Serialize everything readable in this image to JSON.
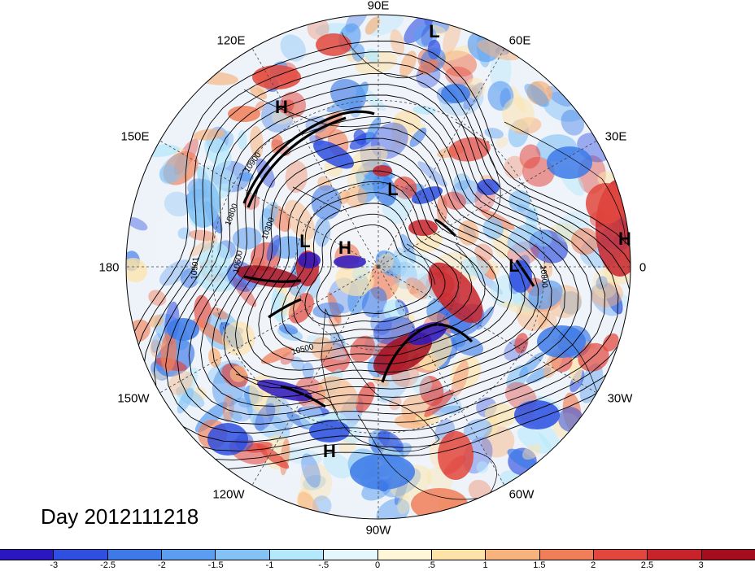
{
  "map": {
    "projection": "north-polar-stereographic",
    "longitude_labels": [
      "90E",
      "60E",
      "30E",
      "0",
      "30W",
      "60W",
      "90W",
      "120W",
      "150W",
      "180",
      "150E",
      "120E"
    ],
    "pressure_centers": [
      {
        "type": "L",
        "lon_lat": "Kara Sea region"
      },
      {
        "type": "H",
        "lon_lat": "Siberia"
      },
      {
        "type": "L",
        "lon_lat": "East Siberian Sea"
      },
      {
        "type": "L",
        "lon_lat": "Bering Strait"
      },
      {
        "type": "H",
        "lon_lat": "Chukchi Sea"
      },
      {
        "type": "L",
        "lon_lat": "Iceland"
      },
      {
        "type": "H",
        "lon_lat": "North Africa"
      },
      {
        "type": "H",
        "lon_lat": "Eastern Pacific"
      }
    ],
    "contour_labels": [
      "10900",
      "10800",
      "10300",
      "10600",
      "10901",
      "10500",
      "10800"
    ],
    "field_colors": {
      "positive": "#d73027",
      "negative": "#2c6fd0",
      "neutral": "#ffffff",
      "land_lines": "#000000"
    }
  },
  "day_label": "Day 2012111218",
  "colorbar": {
    "colors": [
      "#2b16c2",
      "#2e4fe0",
      "#3d7ae8",
      "#5b9ef0",
      "#84c2f5",
      "#b4e8fb",
      "#e6f7fc",
      "#fff7d8",
      "#fde3a8",
      "#f8b27c",
      "#f07e58",
      "#e2463d",
      "#c8232a",
      "#a50d1f"
    ],
    "tick_labels": [
      "-3",
      "-2.5",
      "-2",
      "-1.5",
      "-1",
      "-.5",
      "0",
      ".5",
      "1",
      "1.5",
      "2",
      "2.5",
      "3"
    ]
  }
}
